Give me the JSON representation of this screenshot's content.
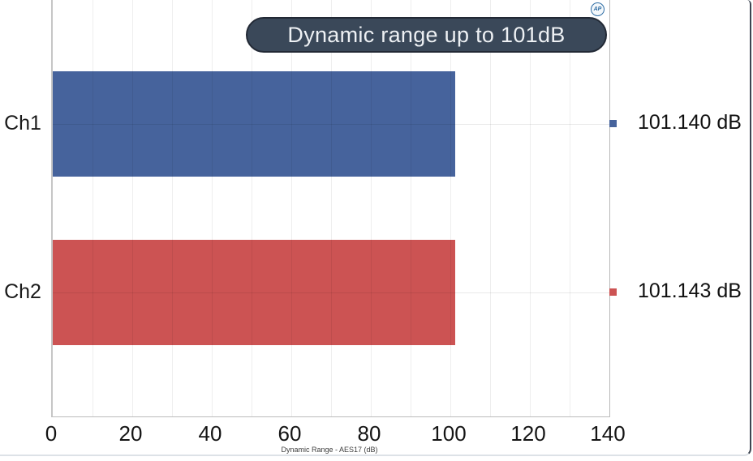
{
  "logo": {
    "text": "AP"
  },
  "chart_data": {
    "type": "bar",
    "orientation": "horizontal",
    "title": "Dynamic range up to 101dB",
    "categories": [
      "Ch1",
      "Ch2"
    ],
    "values": [
      101.14,
      101.143
    ],
    "value_labels": [
      "101.140 dB",
      "101.143 dB"
    ],
    "series_colors": [
      "#46639c",
      "#cc5353"
    ],
    "xlabel": "Dynamic Range - AES17 (dB)",
    "xlim": [
      0,
      140
    ],
    "xticks": [
      0,
      20,
      40,
      60,
      80,
      100,
      120,
      140
    ],
    "x_minor_grid_step": 10,
    "grid": true,
    "legend_position": "right"
  }
}
